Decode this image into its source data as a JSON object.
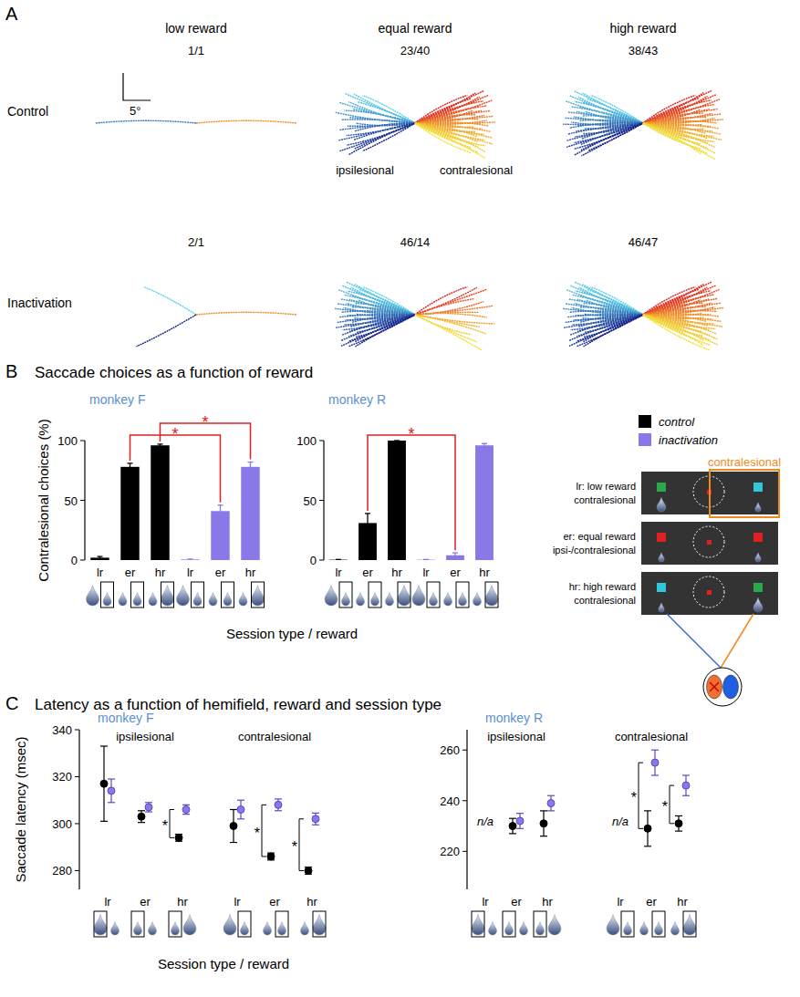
{
  "figure": {
    "panels": [
      {
        "letter": "A"
      },
      {
        "letter": "B",
        "title": "Saccade choices as a function of reward"
      },
      {
        "letter": "C",
        "title": "Latency as a function of hemifield, reward and session type"
      }
    ],
    "schematic": {
      "header": "contralesional",
      "rows": [
        [
          "lr: low reward",
          "contralesional"
        ],
        [
          "er: equal reward",
          "ipsi-/contralesional"
        ],
        [
          "hr: high reward",
          "contralesional"
        ]
      ]
    }
  },
  "chart_data": [
    {
      "type": "trajectory",
      "columns": [
        "low reward",
        "equal reward",
        "high reward"
      ],
      "rows": [
        "Control",
        "Inactivation"
      ],
      "direction_labels": [
        "ipsilesional",
        "contralesional"
      ],
      "scale_bar": "5°",
      "counts": [
        [
          {
            "label": "1/1",
            "ipsilesional": 1,
            "contralesional": 1
          },
          {
            "label": "23/40",
            "ipsilesional": 23,
            "contralesional": 40
          },
          {
            "label": "38/43",
            "ipsilesional": 38,
            "contralesional": 43
          }
        ],
        [
          {
            "label": "2/1",
            "ipsilesional": 2,
            "contralesional": 1
          },
          {
            "label": "46/14",
            "ipsilesional": 46,
            "contralesional": 14
          },
          {
            "label": "46/47",
            "ipsilesional": 46,
            "contralesional": 47
          }
        ]
      ]
    },
    {
      "type": "bar",
      "title": "monkey F",
      "y_label": "Contralesional choices (%)",
      "x_label": "Session type / reward",
      "categories": [
        "lr",
        "er",
        "hr"
      ],
      "series": [
        {
          "name": "control",
          "color": "#000000",
          "values": [
            2,
            78,
            96
          ],
          "errors": [
            1,
            3,
            1
          ]
        },
        {
          "name": "inactivation",
          "color": "#8878e8",
          "values": [
            0.5,
            41,
            78
          ],
          "errors": [
            0.3,
            5,
            4
          ]
        }
      ],
      "ylim": [
        0,
        100
      ],
      "yticks": [
        0,
        50,
        100
      ],
      "significance": [
        {
          "category": 1,
          "label": "*"
        },
        {
          "category": 2,
          "label": "*"
        }
      ]
    },
    {
      "type": "bar",
      "title": "monkey R",
      "legend": "right",
      "categories": [
        "lr",
        "er",
        "hr"
      ],
      "series": [
        {
          "name": "control",
          "color": "#000000",
          "values": [
            0.3,
            31,
            100
          ],
          "errors": [
            0.2,
            8,
            0
          ]
        },
        {
          "name": "inactivation",
          "color": "#8878e8",
          "values": [
            0.3,
            4,
            96
          ],
          "errors": [
            0.2,
            2,
            1.5
          ]
        }
      ],
      "ylim": [
        0,
        100
      ],
      "yticks": [
        0,
        50,
        100
      ],
      "significance": [
        {
          "category": 1,
          "label": "*"
        }
      ]
    },
    {
      "type": "errorbar",
      "title": "monkey F",
      "y_label": "Saccade latency (msec)",
      "x_label": "Session type / reward",
      "categories": [
        "lr",
        "er",
        "hr",
        "lr",
        "er",
        "hr"
      ],
      "groups": [
        {
          "label": "ipsilesional",
          "first": 0,
          "last": 2
        },
        {
          "label": "contralesional",
          "first": 3,
          "last": 5
        }
      ],
      "series": [
        {
          "name": "control",
          "color": "#000000",
          "marker": "circle",
          "values": [
            317,
            303,
            294,
            299,
            286,
            280
          ],
          "errors": [
            16,
            2.5,
            1.5,
            7,
            1.5,
            1.5
          ]
        },
        {
          "name": "inactivation",
          "color": "#8878e8",
          "marker": "circle",
          "values": [
            314,
            307,
            306,
            306,
            308,
            302
          ],
          "errors": [
            5,
            2,
            2,
            4,
            2.5,
            2.5
          ]
        }
      ],
      "ylim": [
        272,
        340
      ],
      "yticks": [
        280,
        300,
        320,
        340
      ],
      "significance": [
        {
          "category": 2,
          "label": "*"
        },
        {
          "category": 4,
          "label": "*"
        },
        {
          "category": 5,
          "label": "*"
        }
      ]
    },
    {
      "type": "errorbar",
      "title": "monkey R",
      "categories": [
        "lr",
        "er",
        "hr",
        "lr",
        "er",
        "hr"
      ],
      "groups": [
        {
          "label": "ipsilesional",
          "first": 0,
          "last": 2
        },
        {
          "label": "contralesional",
          "first": 3,
          "last": 5
        }
      ],
      "series": [
        {
          "name": "control",
          "color": "#000000",
          "marker": "circle",
          "values": [
            null,
            230,
            231,
            null,
            229,
            231
          ],
          "errors": [
            null,
            3,
            5,
            null,
            7,
            3
          ]
        },
        {
          "name": "inactivation",
          "color": "#8878e8",
          "marker": "circle",
          "values": [
            null,
            232,
            239,
            null,
            255,
            246
          ],
          "errors": [
            null,
            3,
            3,
            null,
            5,
            4
          ]
        }
      ],
      "ylim": [
        205,
        268
      ],
      "yticks": [
        220,
        240,
        260
      ],
      "annotations": [
        {
          "category": 0,
          "text": "n/a"
        },
        {
          "category": 3,
          "text": "n/a"
        }
      ],
      "significance": [
        {
          "category": 4,
          "label": "*"
        },
        {
          "category": 5,
          "label": "*"
        }
      ]
    }
  ]
}
